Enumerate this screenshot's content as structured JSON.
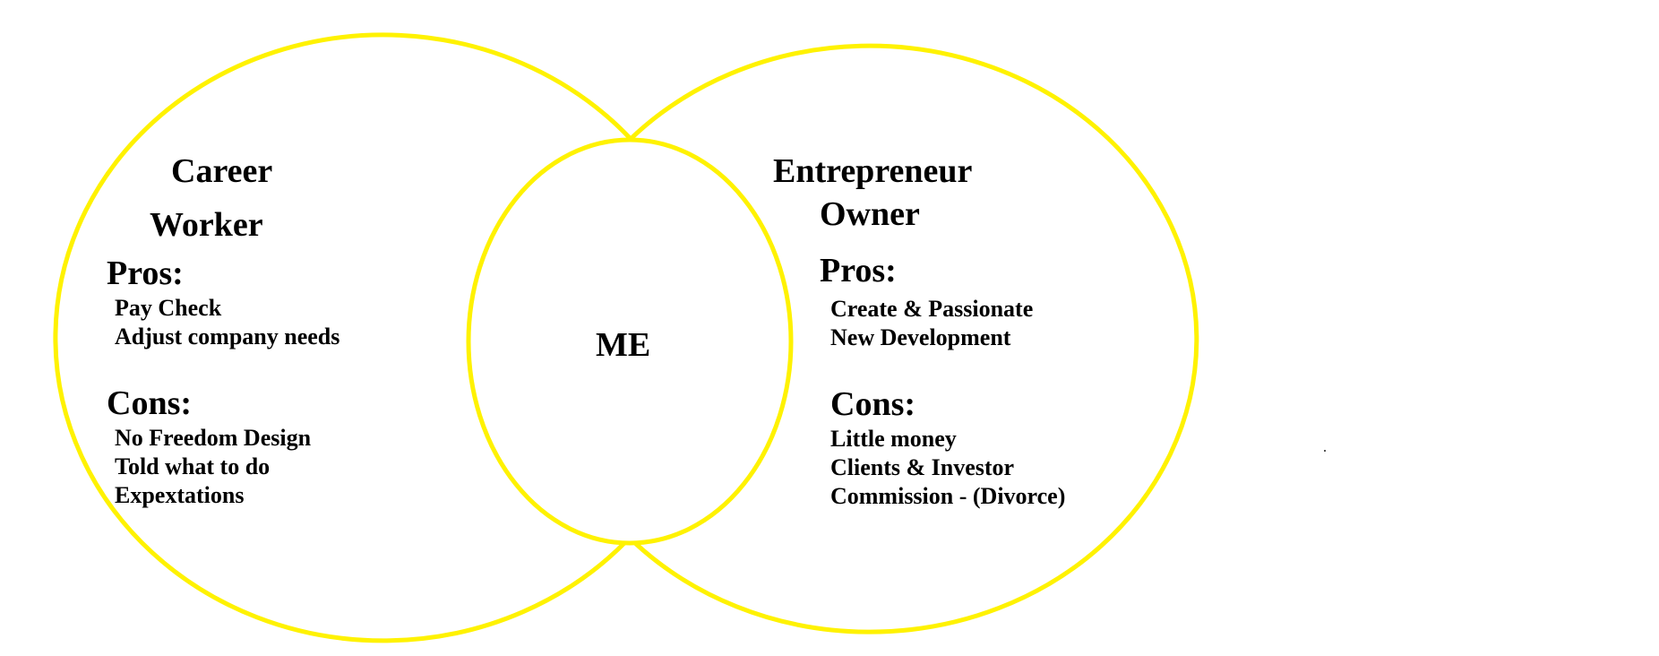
{
  "colors": {
    "circle_stroke": "#FFF200",
    "text": "#000000",
    "background": "#FFFFFF"
  },
  "center": {
    "label": "ME"
  },
  "left": {
    "title_line1": "Career",
    "title_line2": "Worker",
    "pros_heading": "Pros:",
    "pros": [
      "Pay Check",
      "Adjust company needs"
    ],
    "cons_heading": "Cons:",
    "cons": [
      "No Freedom Design",
      "Told what to do",
      "Expextations"
    ]
  },
  "right": {
    "title_line1": "Entrepreneur",
    "title_line2": "Owner",
    "pros_heading": "Pros:",
    "pros": [
      "Create & Passionate",
      "New Development"
    ],
    "cons_heading": "Cons:",
    "cons": [
      "Little money",
      "Clients & Investor",
      "Commission - (Divorce)"
    ]
  }
}
